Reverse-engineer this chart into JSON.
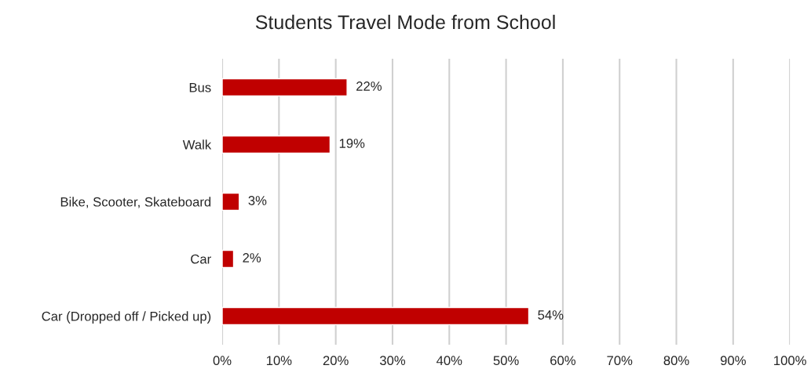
{
  "chart_data": {
    "type": "bar",
    "orientation": "horizontal",
    "title": "Students Travel Mode from School",
    "categories": [
      "Bus",
      "Walk",
      "Bike, Scooter, Skateboard",
      "Car",
      "Car (Dropped off / Picked up)"
    ],
    "values": [
      22,
      19,
      3,
      2,
      54
    ],
    "color": "#c00000",
    "value_labels": [
      "22%",
      "19%",
      "3%",
      "2%",
      "54%"
    ],
    "xlim": [
      0,
      100
    ],
    "xticks": [
      {
        "value": 0,
        "label": "0%"
      },
      {
        "value": 10,
        "label": "10%"
      },
      {
        "value": 20,
        "label": "20%"
      },
      {
        "value": 30,
        "label": "30%"
      },
      {
        "value": 40,
        "label": "40%"
      },
      {
        "value": 50,
        "label": "50%"
      },
      {
        "value": 60,
        "label": "60%"
      },
      {
        "value": 70,
        "label": "70%"
      },
      {
        "value": 80,
        "label": "80%"
      },
      {
        "value": 90,
        "label": "90%"
      },
      {
        "value": 100,
        "label": "100%"
      }
    ],
    "grid": "x",
    "legend": false
  }
}
